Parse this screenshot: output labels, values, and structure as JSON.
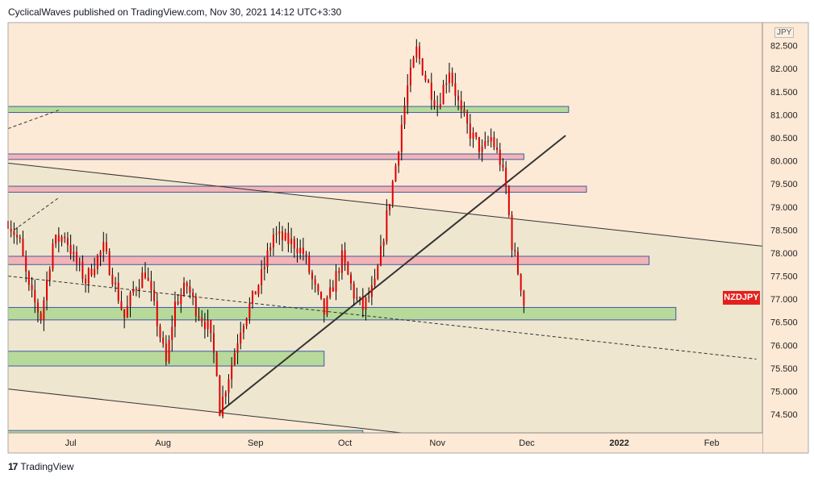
{
  "header": {
    "caption": "CyclicalWaves published on TradingView.com, Nov 30, 2021 14:12 UTC+3:30"
  },
  "footer": {
    "brand": "TradingView"
  },
  "symbol": "NZDJPY",
  "currency": "JPY",
  "colors": {
    "background": "#fce9d6",
    "channel_fill": "#efe6cf",
    "candle": "#e00000",
    "wick": "#000000",
    "green_zone": "#b7d99a",
    "red_zone": "#f2b4b4",
    "zone_border": "#3f5aa6",
    "trendline": "#333333"
  },
  "chart_data": {
    "type": "candlestick",
    "title": "",
    "xlabel": "",
    "ylabel": "",
    "ylim": [
      74.1,
      83.0
    ],
    "y_ticks": [
      "82.500",
      "82.000",
      "81.500",
      "81.000",
      "80.500",
      "80.000",
      "79.500",
      "79.000",
      "78.500",
      "78.000",
      "77.500",
      "77.000",
      "76.500",
      "76.000",
      "75.500",
      "75.000",
      "74.500"
    ],
    "x_ticks": [
      "Jul",
      "Aug",
      "Sep",
      "Oct",
      "Nov",
      "Dec",
      "2022",
      "Feb"
    ],
    "x_tick_dates": [
      "2021-07-01",
      "2021-08-01",
      "2021-09-01",
      "2021-10-01",
      "2021-11-01",
      "2021-12-01",
      "2022-01-01",
      "2022-02-01"
    ],
    "x_range": [
      "2021-06-10",
      "2022-02-18"
    ],
    "last_price": "77.000",
    "price_path": [
      [
        "2021-06-10",
        78.7
      ],
      [
        "2021-06-14",
        78.2
      ],
      [
        "2021-06-17",
        77.2
      ],
      [
        "2021-06-21",
        76.6
      ],
      [
        "2021-06-25",
        78.2
      ],
      [
        "2021-06-29",
        78.4
      ],
      [
        "2021-07-02",
        77.9
      ],
      [
        "2021-07-06",
        77.4
      ],
      [
        "2021-07-09",
        77.8
      ],
      [
        "2021-07-12",
        78.1
      ],
      [
        "2021-07-15",
        77.5
      ],
      [
        "2021-07-19",
        76.6
      ],
      [
        "2021-07-22",
        77.2
      ],
      [
        "2021-07-26",
        77.6
      ],
      [
        "2021-07-29",
        76.8
      ],
      [
        "2021-08-02",
        75.6
      ],
      [
        "2021-08-05",
        76.9
      ],
      [
        "2021-08-09",
        77.3
      ],
      [
        "2021-08-12",
        76.8
      ],
      [
        "2021-08-16",
        76.4
      ],
      [
        "2021-08-19",
        75.5
      ],
      [
        "2021-08-20",
        74.6
      ],
      [
        "2021-08-24",
        75.6
      ],
      [
        "2021-08-27",
        76.4
      ],
      [
        "2021-08-31",
        77.0
      ],
      [
        "2021-09-03",
        77.5
      ],
      [
        "2021-09-07",
        78.4
      ],
      [
        "2021-09-10",
        78.3
      ],
      [
        "2021-09-14",
        78.2
      ],
      [
        "2021-09-17",
        78.0
      ],
      [
        "2021-09-21",
        77.2
      ],
      [
        "2021-09-24",
        76.7
      ],
      [
        "2021-09-27",
        77.3
      ],
      [
        "2021-09-30",
        77.9
      ],
      [
        "2021-10-04",
        77.1
      ],
      [
        "2021-10-07",
        76.8
      ],
      [
        "2021-10-11",
        77.3
      ],
      [
        "2021-10-13",
        78.0
      ],
      [
        "2021-10-15",
        78.8
      ],
      [
        "2021-10-18",
        79.9
      ],
      [
        "2021-10-20",
        80.8
      ],
      [
        "2021-10-22",
        81.6
      ],
      [
        "2021-10-25",
        82.4
      ],
      [
        "2021-10-28",
        81.8
      ],
      [
        "2021-11-01",
        81.2
      ],
      [
        "2021-11-03",
        81.6
      ],
      [
        "2021-11-05",
        82.0
      ],
      [
        "2021-11-09",
        81.0
      ],
      [
        "2021-11-12",
        80.6
      ],
      [
        "2021-11-16",
        80.2
      ],
      [
        "2021-11-19",
        80.5
      ],
      [
        "2021-11-22",
        80.0
      ],
      [
        "2021-11-24",
        79.4
      ],
      [
        "2021-11-26",
        78.2
      ],
      [
        "2021-11-29",
        77.3
      ],
      [
        "2021-11-30",
        76.9
      ]
    ],
    "zones": [
      {
        "kind": "green",
        "from": "2021-06-10",
        "to": "2021-12-15",
        "y_low": 81.05,
        "y_high": 81.18
      },
      {
        "kind": "red",
        "from": "2021-06-10",
        "to": "2021-11-30",
        "y_low": 80.03,
        "y_high": 80.15
      },
      {
        "kind": "red",
        "from": "2021-06-10",
        "to": "2021-12-21",
        "y_low": 79.32,
        "y_high": 79.45
      },
      {
        "kind": "red",
        "from": "2021-06-10",
        "to": "2022-01-11",
        "y_low": 77.75,
        "y_high": 77.93
      },
      {
        "kind": "green",
        "from": "2021-06-10",
        "to": "2022-01-20",
        "y_low": 76.55,
        "y_high": 76.82
      },
      {
        "kind": "green",
        "from": "2021-06-10",
        "to": "2021-09-24",
        "y_low": 75.55,
        "y_high": 75.87
      },
      {
        "kind": "green",
        "from": "2021-06-10",
        "to": "2021-10-07",
        "y_low": 74.0,
        "y_high": 74.15
      }
    ],
    "lines": [
      {
        "kind": "solid",
        "from": [
          "2021-06-10",
          79.95
        ],
        "to": [
          "2022-02-18",
          78.15
        ]
      },
      {
        "kind": "solid",
        "from": [
          "2021-06-10",
          75.05
        ],
        "to": [
          "2021-10-20",
          74.1
        ]
      },
      {
        "kind": "solid",
        "from": [
          "2021-08-20",
          74.55
        ],
        "to": [
          "2021-12-14",
          80.55
        ]
      },
      {
        "kind": "dashed",
        "from": [
          "2021-06-10",
          77.5
        ],
        "to": [
          "2022-02-16",
          75.7
        ]
      },
      {
        "kind": "dashed",
        "from": [
          "2021-06-10",
          80.7
        ],
        "to": [
          "2021-06-27",
          81.1
        ]
      },
      {
        "kind": "dashed",
        "from": [
          "2021-06-12",
          78.5
        ],
        "to": [
          "2021-06-27",
          79.2
        ]
      }
    ]
  }
}
